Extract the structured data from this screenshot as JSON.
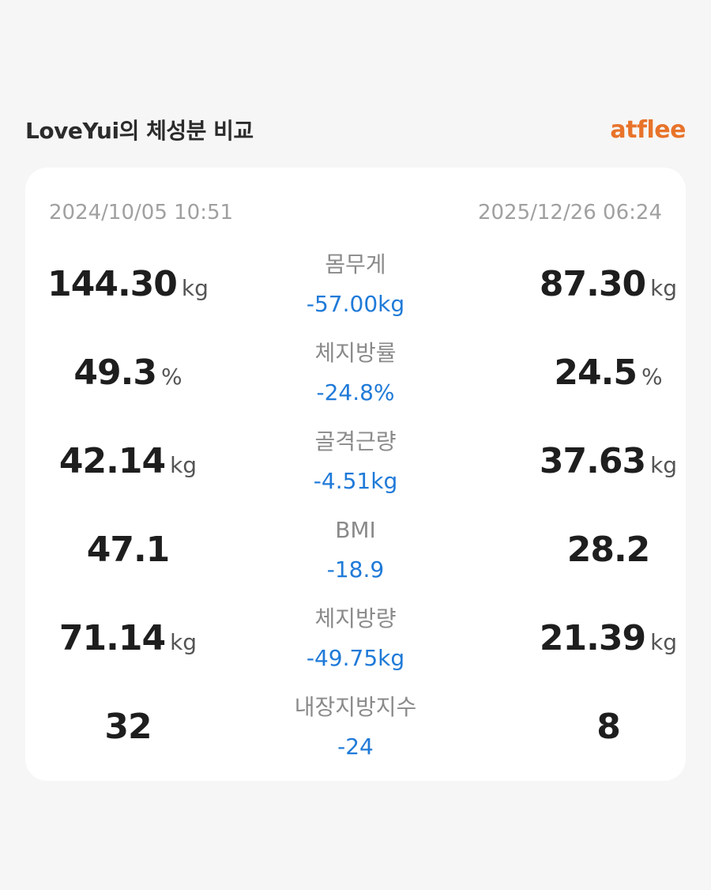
{
  "header": {
    "title": "LoveYui의 체성분 비교",
    "brand": "atflee"
  },
  "dates": {
    "before": "2024/10/05 10:51",
    "after": "2025/12/26 06:24"
  },
  "metrics": [
    {
      "label": "몸무게",
      "before": "144.30",
      "after": "87.30",
      "unit": "kg",
      "diff": "-57.00kg"
    },
    {
      "label": "체지방률",
      "before": "49.3",
      "after": "24.5",
      "unit": "%",
      "diff": "-24.8%"
    },
    {
      "label": "골격근량",
      "before": "42.14",
      "after": "37.63",
      "unit": "kg",
      "diff": "-4.51kg"
    },
    {
      "label": "BMI",
      "before": "47.1",
      "after": "28.2",
      "unit": "",
      "diff": "-18.9"
    },
    {
      "label": "체지방량",
      "before": "71.14",
      "after": "21.39",
      "unit": "kg",
      "diff": "-49.75kg"
    },
    {
      "label": "내장지방지수",
      "before": "32",
      "after": "8",
      "unit": "",
      "diff": "-24"
    }
  ],
  "colors": {
    "brand": "#e8732a",
    "diff": "#1f7ad8"
  }
}
